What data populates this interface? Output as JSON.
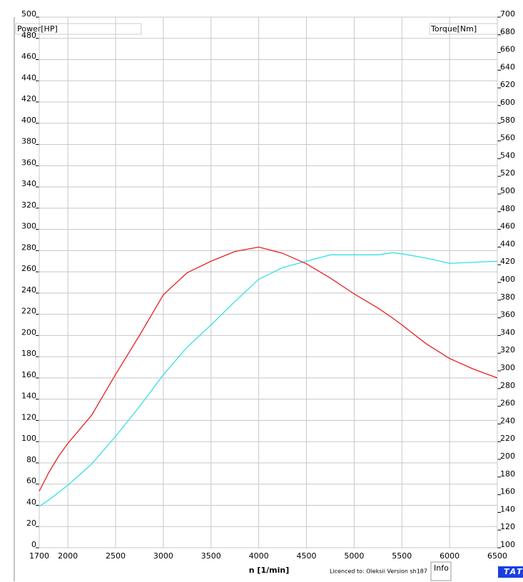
{
  "chart_data": {
    "type": "line",
    "x_label": "n  [1/min]",
    "y_label": "Power[HP]",
    "y2_label": "Torque[Nm]",
    "footer": "Licenced to: Oleksii   Version sh187",
    "info_button": "Info",
    "brand": "TAT",
    "x": [
      1700,
      1800,
      1900,
      2000,
      2250,
      2500,
      2750,
      3000,
      3250,
      3500,
      3750,
      4000,
      4250,
      4500,
      4750,
      5000,
      5250,
      5400,
      5500,
      5750,
      6000,
      6250,
      6500
    ],
    "series": [
      {
        "name": "Power[HP]",
        "color": "#33e0e8",
        "axis": "y",
        "values": [
          39,
          45,
          52,
          59,
          79,
          105,
          133,
          163,
          189,
          210,
          232,
          253,
          264,
          270,
          276,
          276,
          276,
          278,
          277,
          273,
          268,
          269,
          270
        ]
      },
      {
        "name": "Torque[Nm]",
        "color": "#e82020",
        "axis": "y2",
        "values": [
          164,
          185,
          203,
          218,
          250,
          296,
          340,
          386,
          411,
          424,
          435,
          440,
          433,
          421,
          405,
          387,
          371,
          360,
          352,
          331,
          314,
          302,
          292
        ]
      }
    ],
    "xlim": [
      1700,
      6500
    ],
    "xticks": [
      1700,
      2000,
      2500,
      3000,
      3500,
      4000,
      4500,
      5000,
      5500,
      6000,
      6500
    ],
    "ylim": [
      0,
      500
    ],
    "yticks": [
      0,
      20,
      40,
      60,
      80,
      100,
      120,
      140,
      160,
      180,
      200,
      220,
      240,
      260,
      280,
      300,
      320,
      340,
      360,
      380,
      400,
      420,
      440,
      460,
      480,
      500
    ],
    "y2lim": [
      100,
      700
    ],
    "y2ticks": [
      100,
      120,
      140,
      160,
      180,
      200,
      220,
      240,
      260,
      280,
      300,
      320,
      340,
      360,
      380,
      400,
      420,
      440,
      460,
      480,
      500,
      520,
      540,
      560,
      580,
      600,
      620,
      640,
      660,
      680,
      700
    ],
    "grid": true
  }
}
